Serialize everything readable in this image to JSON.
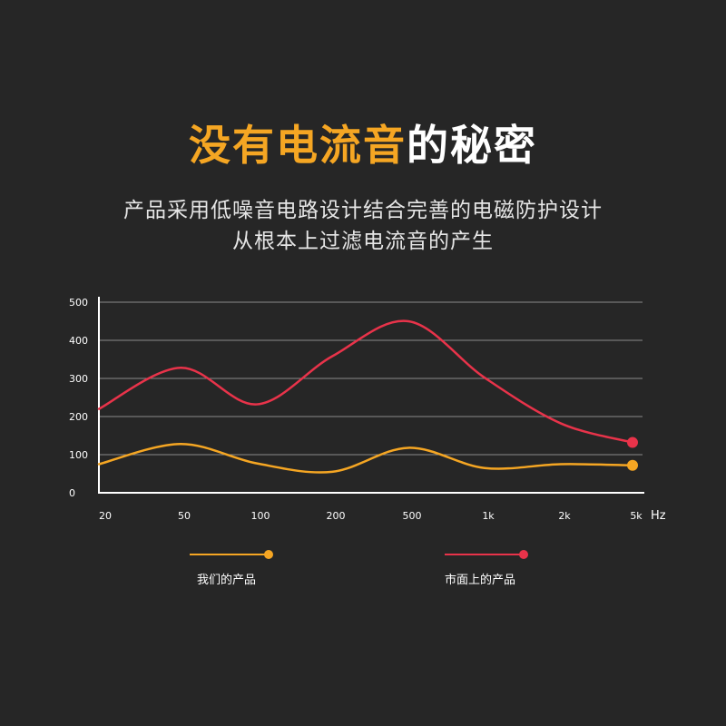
{
  "title": {
    "highlight": "没有电流音",
    "rest": "的秘密"
  },
  "subtitle": {
    "line1": "产品采用低噪音电路设计结合完善的电磁防护设计",
    "line2": "从根本上过滤电流音的产生"
  },
  "colors": {
    "background": "#262626",
    "accent": "#f5a623",
    "market": "#e8334a",
    "grid": "#8a8a8a"
  },
  "chart_data": {
    "type": "line",
    "categories": [
      "20",
      "50",
      "100",
      "200",
      "500",
      "1k",
      "2k",
      "5k"
    ],
    "xunit": "Hz",
    "yticks": [
      "0",
      "100",
      "200",
      "300",
      "400",
      "500"
    ],
    "ylim": [
      0,
      500
    ],
    "grid": true,
    "legend_position": "bottom",
    "series": [
      {
        "name": "我们的产品",
        "color": "#f5a623",
        "values": [
          75,
          128,
          77,
          55,
          118,
          65,
          75,
          72
        ]
      },
      {
        "name": "市面上的产品",
        "color": "#e8334a",
        "values": [
          220,
          328,
          232,
          358,
          450,
          302,
          182,
          132
        ]
      }
    ]
  }
}
